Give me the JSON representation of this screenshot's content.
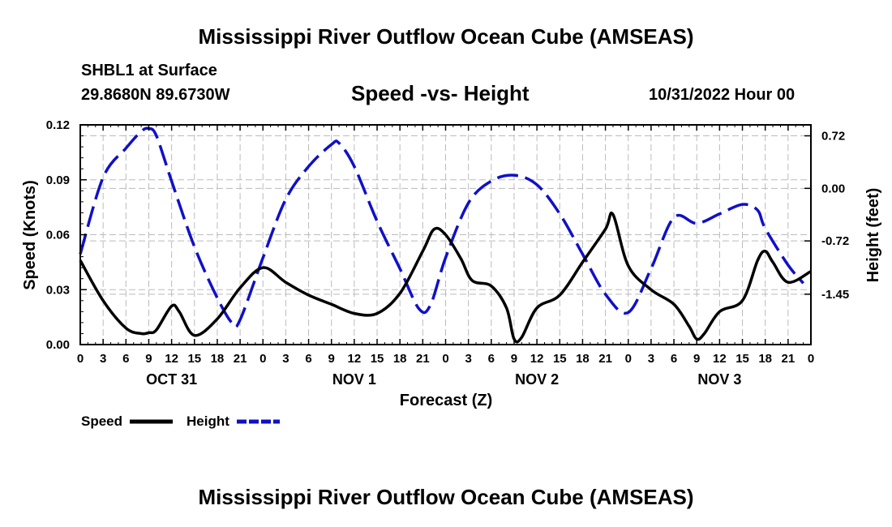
{
  "header": {
    "title": "Mississippi River Outflow Ocean Cube (AMSEAS)",
    "station": "SHBL1 at Surface",
    "coords": "29.8680N  89.6730W",
    "subtitle": "Speed -vs- Height",
    "datetime": "10/31/2022 Hour 00"
  },
  "footer": {
    "title": "Mississippi River Outflow Ocean Cube (AMSEAS)"
  },
  "chart_data": {
    "type": "line",
    "xlabel": "Forecast (Z)",
    "ylabel_left": "Speed (Knots)",
    "ylabel_right": "Height (feet)",
    "x_range_hours": [
      0,
      96
    ],
    "x_ticks": [
      {
        "hour": 0,
        "label": "0"
      },
      {
        "hour": 3,
        "label": "3"
      },
      {
        "hour": 6,
        "label": "6"
      },
      {
        "hour": 9,
        "label": "9"
      },
      {
        "hour": 12,
        "label": "12"
      },
      {
        "hour": 15,
        "label": "15"
      },
      {
        "hour": 18,
        "label": "18"
      },
      {
        "hour": 21,
        "label": "21"
      },
      {
        "hour": 24,
        "label": "0"
      },
      {
        "hour": 27,
        "label": "3"
      },
      {
        "hour": 30,
        "label": "6"
      },
      {
        "hour": 33,
        "label": "9"
      },
      {
        "hour": 36,
        "label": "12"
      },
      {
        "hour": 39,
        "label": "15"
      },
      {
        "hour": 42,
        "label": "18"
      },
      {
        "hour": 45,
        "label": "21"
      },
      {
        "hour": 48,
        "label": "0"
      },
      {
        "hour": 51,
        "label": "3"
      },
      {
        "hour": 54,
        "label": "6"
      },
      {
        "hour": 57,
        "label": "9"
      },
      {
        "hour": 60,
        "label": "12"
      },
      {
        "hour": 63,
        "label": "15"
      },
      {
        "hour": 66,
        "label": "18"
      },
      {
        "hour": 69,
        "label": "21"
      },
      {
        "hour": 72,
        "label": "0"
      },
      {
        "hour": 75,
        "label": "3"
      },
      {
        "hour": 78,
        "label": "6"
      },
      {
        "hour": 81,
        "label": "9"
      },
      {
        "hour": 84,
        "label": "12"
      },
      {
        "hour": 87,
        "label": "15"
      },
      {
        "hour": 90,
        "label": "18"
      },
      {
        "hour": 93,
        "label": "21"
      },
      {
        "hour": 96,
        "label": "0"
      }
    ],
    "day_labels": [
      {
        "hour": 12,
        "label": "OCT 31"
      },
      {
        "hour": 36,
        "label": "NOV 1"
      },
      {
        "hour": 60,
        "label": "NOV 2"
      },
      {
        "hour": 84,
        "label": "NOV 3"
      }
    ],
    "left_axis": {
      "min": 0,
      "max": 0.12,
      "ticks": [
        "0.00",
        "0.03",
        "0.06",
        "0.09",
        "0.12"
      ]
    },
    "right_axis": {
      "min": -2.14,
      "max": 0.87,
      "ticks": [
        "-1.45",
        "-0.72",
        "0.00",
        "0.72"
      ]
    },
    "series": [
      {
        "name": "Speed",
        "axis": "left",
        "color": "#000000",
        "style": "solid",
        "x": [
          0,
          3,
          6,
          8,
          9,
          10,
          12,
          13,
          15,
          18,
          21,
          24,
          27,
          30,
          33,
          36,
          39,
          42,
          45,
          46.5,
          48,
          50,
          51.5,
          54,
          56,
          57,
          58,
          60,
          63,
          66,
          69,
          70,
          72,
          75,
          78,
          80,
          81,
          82,
          84,
          87,
          89,
          90,
          91,
          93,
          96
        ],
        "values": [
          0.046,
          0.024,
          0.009,
          0.006,
          0.0065,
          0.008,
          0.021,
          0.018,
          0.005,
          0.014,
          0.031,
          0.042,
          0.034,
          0.027,
          0.022,
          0.017,
          0.017,
          0.028,
          0.051,
          0.063,
          0.06,
          0.047,
          0.035,
          0.032,
          0.02,
          0.003,
          0.004,
          0.02,
          0.027,
          0.045,
          0.063,
          0.071,
          0.043,
          0.03,
          0.022,
          0.01,
          0.003,
          0.006,
          0.018,
          0.024,
          0.046,
          0.051,
          0.045,
          0.034,
          0.04
        ]
      },
      {
        "name": "Height",
        "axis": "right",
        "color": "#1010c8",
        "style": "dashed",
        "x": [
          0,
          3,
          6,
          8,
          9,
          10,
          12,
          15,
          18,
          20,
          21,
          24,
          27,
          30,
          33,
          34,
          36,
          39,
          42,
          44.5,
          46,
          48,
          51,
          54,
          57,
          60,
          63,
          66,
          69,
          72,
          75,
          78,
          81,
          84,
          87,
          89,
          90,
          93,
          95
        ],
        "values": [
          -0.9,
          0.15,
          0.55,
          0.78,
          0.82,
          0.72,
          0.1,
          -0.8,
          -1.5,
          -1.85,
          -1.8,
          -0.95,
          -0.15,
          0.3,
          0.6,
          0.62,
          0.3,
          -0.45,
          -1.1,
          -1.65,
          -1.6,
          -0.95,
          -0.2,
          0.1,
          0.18,
          0.05,
          -0.35,
          -0.9,
          -1.45,
          -1.7,
          -1.1,
          -0.4,
          -0.48,
          -0.35,
          -0.22,
          -0.3,
          -0.55,
          -1.05,
          -1.3
        ]
      }
    ],
    "legend": [
      {
        "name": "Speed",
        "color": "#000000",
        "style": "solid"
      },
      {
        "name": "Height",
        "color": "#1010c8",
        "style": "dashed"
      }
    ],
    "legend_position": "bottom-left",
    "grid": true
  }
}
